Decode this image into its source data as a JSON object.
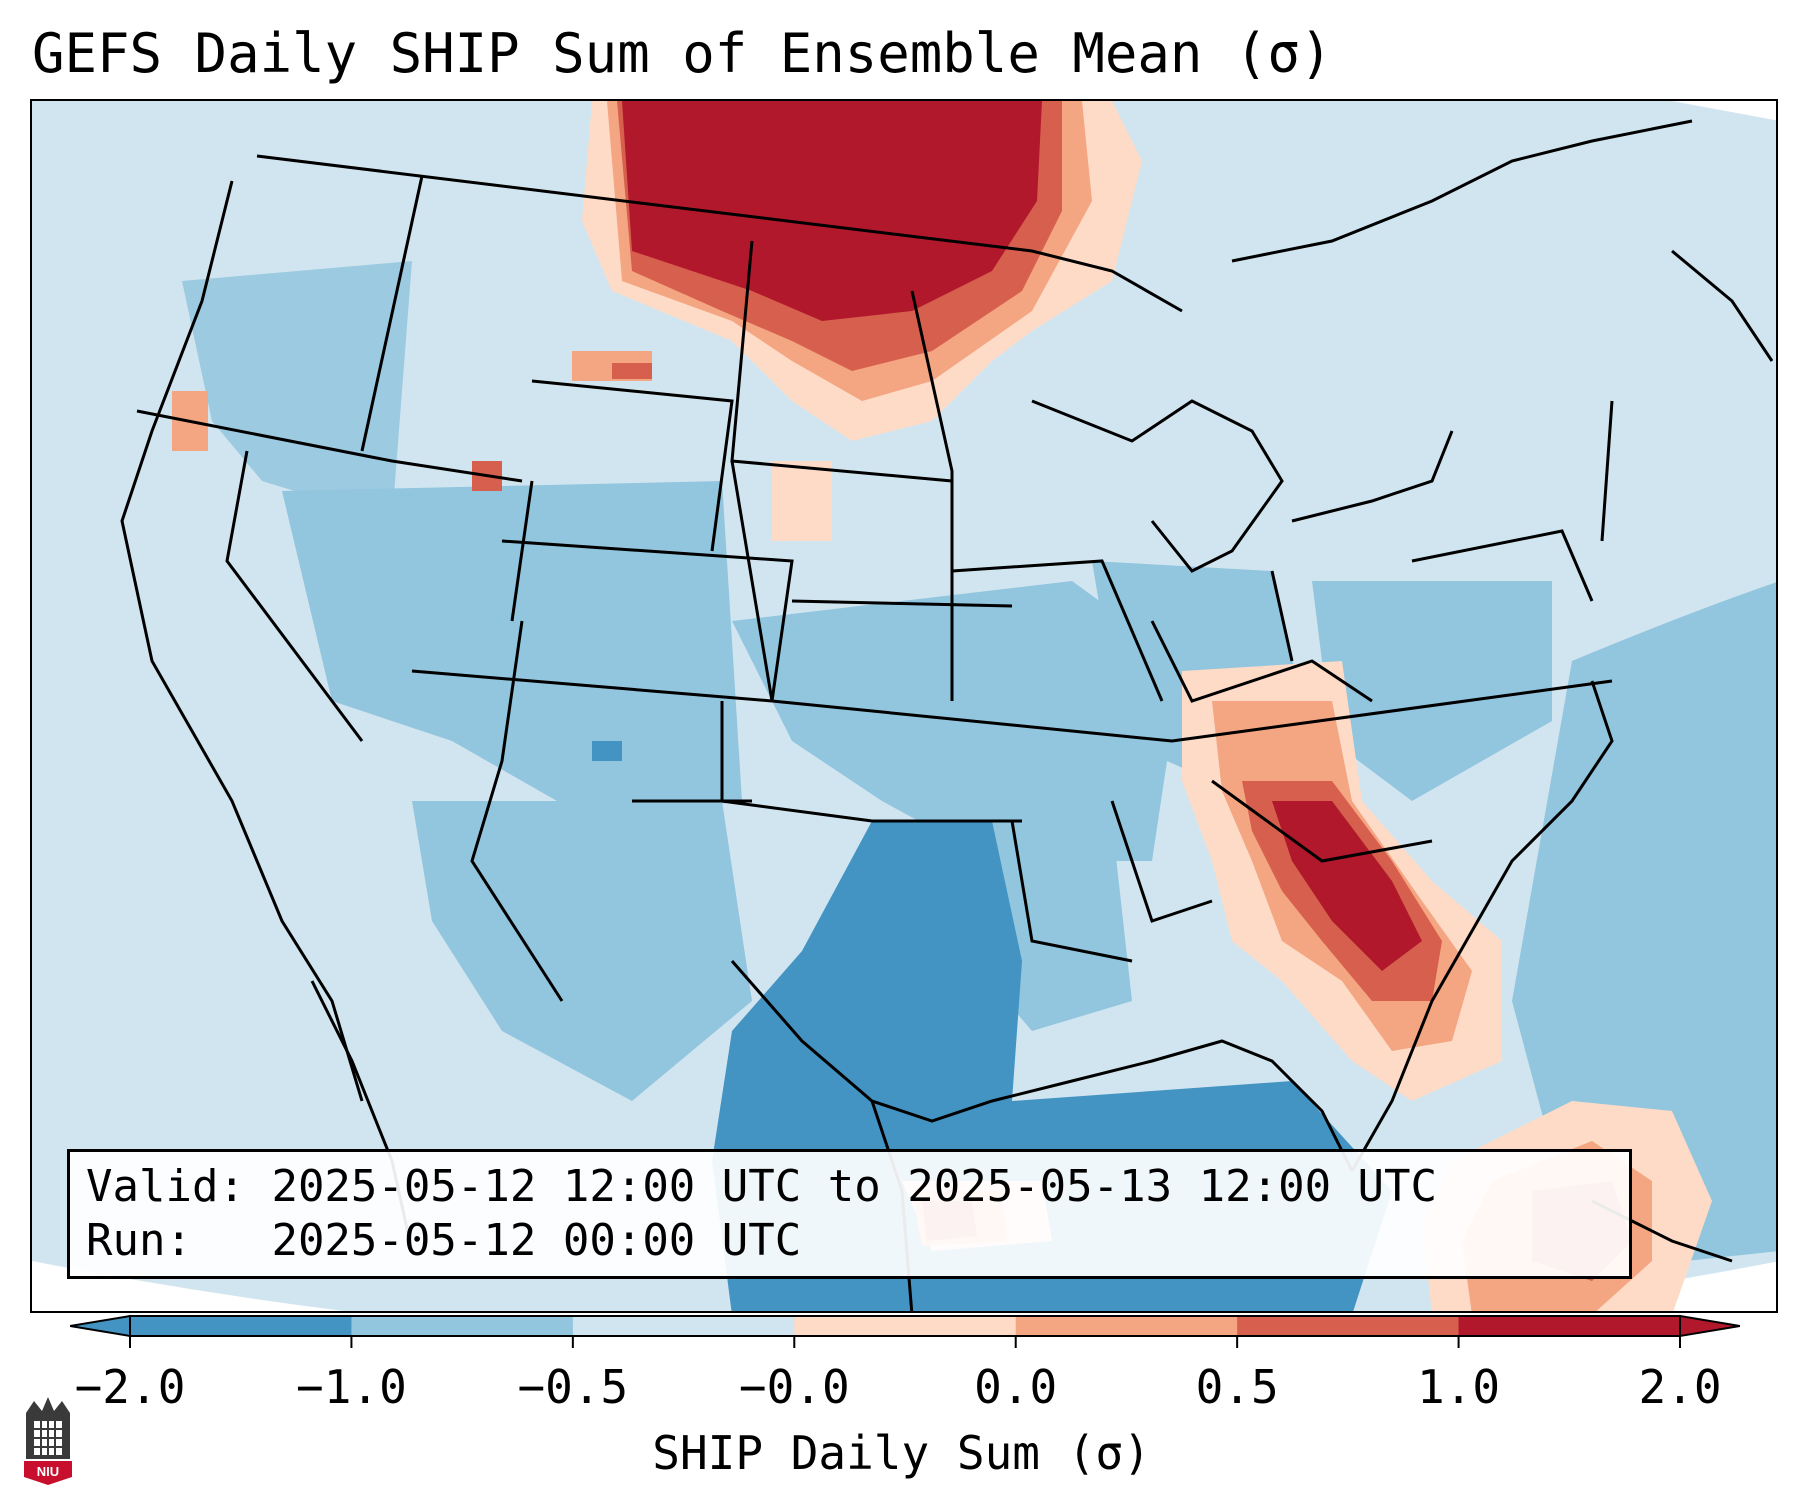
{
  "title": "GEFS Daily SHIP Sum of Ensemble Mean (σ)",
  "info": {
    "valid_label": "Valid:",
    "valid_value": "2025-05-12 12:00 UTC to 2025-05-13 12:00 UTC",
    "run_label": "Run:",
    "run_value": "2025-05-12 00:00 UTC"
  },
  "colorbar": {
    "label": "SHIP Daily Sum (σ)",
    "ticks": [
      "−2.0",
      "−1.0",
      "−0.5",
      "−0.0",
      "0.0",
      "0.5",
      "1.0",
      "2.0"
    ],
    "colors": [
      "#4393c3",
      "#92c5de",
      "#d1e5f0",
      "#fddbc7",
      "#f4a582",
      "#d6604d",
      "#b2182b"
    ],
    "extend": "both"
  },
  "logo": {
    "text": "NIU"
  },
  "map_colors": {
    "very_low": "#4393c3",
    "low": "#92c5de",
    "slightly_low": "#d1e5f0",
    "slightly_high": "#fddbc7",
    "high": "#f4a582",
    "very_high": "#d6604d",
    "extreme": "#b2182b"
  },
  "map_features": [
    "state-borders",
    "coastlines",
    "country-borders"
  ],
  "regions": [
    {
      "name": "northern-plains-maximum",
      "category": "extreme"
    },
    {
      "name": "southeast-maximum",
      "category": "extreme"
    },
    {
      "name": "gulf-of-mexico-minimum",
      "category": "very_low"
    },
    {
      "name": "texas-minimum",
      "category": "very_low"
    },
    {
      "name": "florida-straits-maximum",
      "category": "very_high"
    }
  ]
}
